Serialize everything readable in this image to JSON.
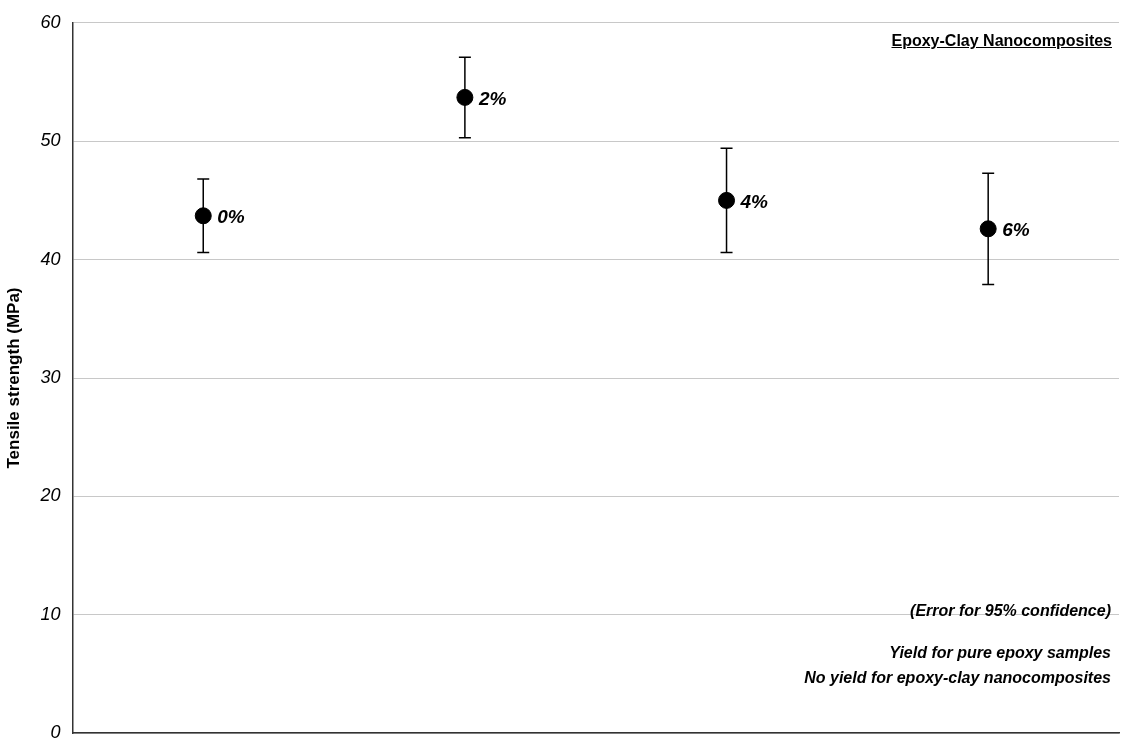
{
  "chart_data": {
    "type": "scatter",
    "title": "Epoxy-Clay Nanocomposites",
    "ylabel": "Tensile strength (MPa)",
    "categories": [
      "0%",
      "2%",
      "4%",
      "6%"
    ],
    "series": [
      {
        "color": "#000000",
        "values": [
          43.7,
          53.7,
          45.0,
          42.6
        ],
        "errors": [
          3.1,
          3.4,
          4.4,
          4.7
        ]
      }
    ],
    "ylim": [
      0,
      60
    ],
    "yticks": [
      0,
      10,
      20,
      30,
      40,
      50,
      60
    ],
    "grid": "y",
    "marker": "circle",
    "tick_labels": "y",
    "legend": false,
    "annotations": [
      "(Error for 95% confidence)",
      "Yield for pure epoxy samples",
      "No yield for epoxy-clay nanocomposites"
    ]
  }
}
